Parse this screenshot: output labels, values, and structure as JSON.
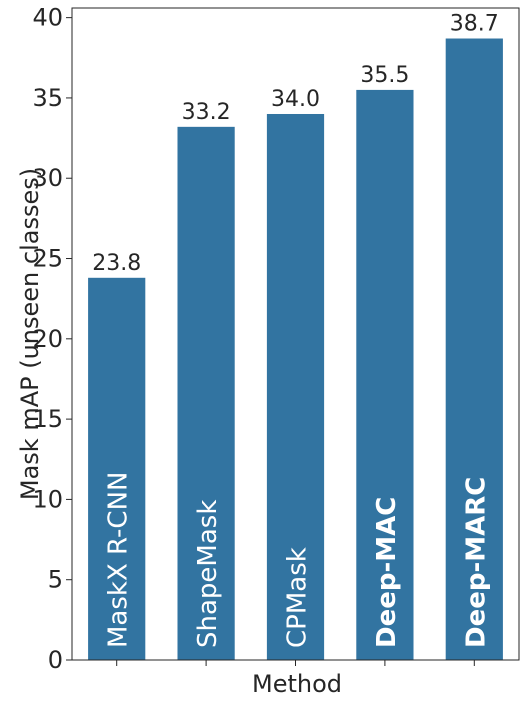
{
  "chart_data": {
    "type": "bar",
    "x_label": "Method",
    "y_label": "Mask mAP (unseen classes)",
    "categories": [
      "MaskX R-CNN",
      "ShapeMask",
      "CPMask",
      "Deep-MAC",
      "Deep-MARC"
    ],
    "bold": [
      false,
      false,
      false,
      true,
      true
    ],
    "values": [
      23.8,
      33.2,
      34.0,
      35.5,
      38.7
    ],
    "value_labels": [
      "23.8",
      "33.2",
      "34.0",
      "35.5",
      "38.7"
    ],
    "color": "#3274a1",
    "ylim": [
      0,
      40.6
    ],
    "yticks": [
      0,
      5,
      10,
      15,
      20,
      25,
      30,
      35,
      40
    ]
  }
}
